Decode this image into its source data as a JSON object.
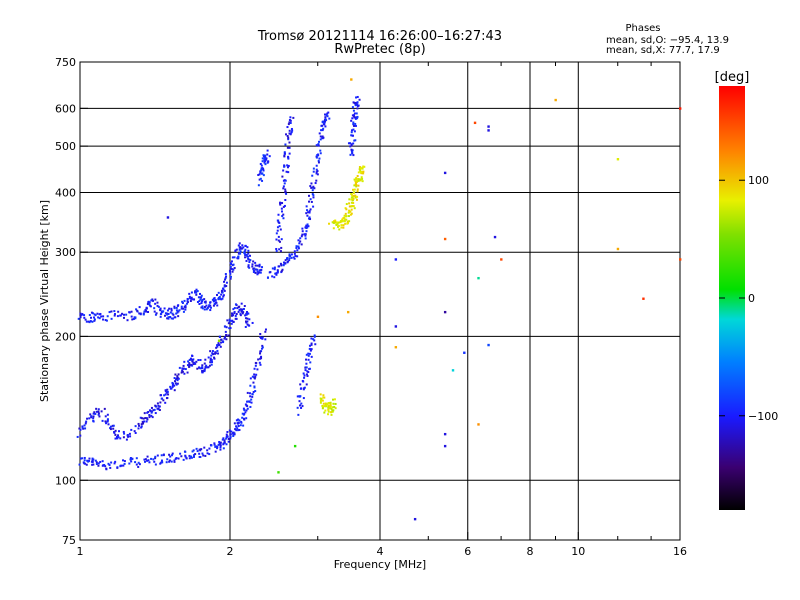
{
  "header": {
    "title_line1": "Tromsø 20121114 16:26:00–16:27:43",
    "title_line2": "RwPretec (8p)"
  },
  "info": {
    "line1": "Phases",
    "line2": "mean, sd,O: −95.4, 13.9",
    "line3": "mean, sd,X:  77.7, 17.9"
  },
  "colorbar": {
    "unit": "[deg]",
    "ticks": [
      {
        "value": 100,
        "label": "100"
      },
      {
        "value": 0,
        "label": "0"
      },
      {
        "value": -100,
        "label": "−100"
      }
    ],
    "range": [
      -180,
      180
    ]
  },
  "chart_data": {
    "type": "scatter",
    "title": "Tromsø 20121114 16:26:00–16:27:43",
    "subtitle": "RwPretec (8p)",
    "xlabel": "Frequency [MHz]",
    "ylabel": "Stationary phase Virtual Height [km]",
    "x_scale": "log",
    "y_scale": "log",
    "xlim": [
      1,
      16
    ],
    "ylim": [
      75,
      750
    ],
    "x_ticks": [
      {
        "value": 1,
        "label": "1"
      },
      {
        "value": 2,
        "label": "2"
      },
      {
        "value": 4,
        "label": "4"
      },
      {
        "value": 6,
        "label": "6"
      },
      {
        "value": 8,
        "label": "8"
      },
      {
        "value": 10,
        "label": "10"
      },
      {
        "value": 16,
        "label": "16"
      }
    ],
    "x_grid": [
      2,
      4,
      6,
      8,
      10
    ],
    "x_minor_ticks": [
      3,
      5,
      7,
      9,
      12,
      14
    ],
    "y_ticks": [
      {
        "value": 75,
        "label": "75"
      },
      {
        "value": 100,
        "label": "100"
      },
      {
        "value": 200,
        "label": "200"
      },
      {
        "value": 300,
        "label": "300"
      },
      {
        "value": 400,
        "label": "400"
      },
      {
        "value": 500,
        "label": "500"
      },
      {
        "value": 600,
        "label": "600"
      },
      {
        "value": 750,
        "label": "750"
      }
    ],
    "y_grid": [
      100,
      200,
      300,
      400,
      500,
      600
    ],
    "grid": true,
    "color_by": "phase [deg]",
    "traces": [
      {
        "description": "O-mode E layer trace",
        "phase": -100,
        "points": [
          [
            1.0,
            110
          ],
          [
            1.05,
            109
          ],
          [
            1.1,
            108
          ],
          [
            1.2,
            108
          ],
          [
            1.3,
            109
          ],
          [
            1.4,
            110
          ],
          [
            1.5,
            111
          ],
          [
            1.6,
            112
          ],
          [
            1.7,
            113
          ],
          [
            1.8,
            115
          ],
          [
            1.9,
            118
          ],
          [
            1.95,
            121
          ],
          [
            2.0,
            124
          ],
          [
            2.05,
            128
          ],
          [
            2.1,
            133
          ],
          [
            2.15,
            140
          ],
          [
            2.2,
            150
          ],
          [
            2.25,
            165
          ],
          [
            2.3,
            185
          ],
          [
            2.35,
            205
          ]
        ]
      },
      {
        "description": "O-mode lower scatter band",
        "phase": -105,
        "points": [
          [
            1.0,
            125
          ],
          [
            1.05,
            135
          ],
          [
            1.1,
            140
          ],
          [
            1.15,
            130
          ],
          [
            1.2,
            122
          ],
          [
            1.3,
            128
          ],
          [
            1.35,
            135
          ],
          [
            1.4,
            140
          ],
          [
            1.45,
            145
          ],
          [
            1.5,
            152
          ],
          [
            1.55,
            160
          ],
          [
            1.6,
            168
          ],
          [
            1.65,
            175
          ],
          [
            1.7,
            180
          ],
          [
            1.75,
            170
          ],
          [
            1.8,
            175
          ],
          [
            1.85,
            182
          ],
          [
            1.9,
            190
          ],
          [
            1.95,
            200
          ],
          [
            2.0,
            215
          ],
          [
            2.05,
            225
          ],
          [
            2.1,
            230
          ],
          [
            2.15,
            220
          ],
          [
            2.2,
            210
          ]
        ]
      },
      {
        "description": "Es / low F band",
        "phase": -100,
        "points": [
          [
            1.0,
            220
          ],
          [
            1.05,
            219
          ],
          [
            1.1,
            220
          ],
          [
            1.2,
            221
          ],
          [
            1.3,
            222
          ],
          [
            1.35,
            228
          ],
          [
            1.4,
            235
          ],
          [
            1.45,
            225
          ],
          [
            1.5,
            222
          ],
          [
            1.55,
            224
          ],
          [
            1.6,
            230
          ],
          [
            1.65,
            238
          ],
          [
            1.7,
            245
          ],
          [
            1.75,
            238
          ],
          [
            1.8,
            232
          ],
          [
            1.85,
            234
          ],
          [
            1.9,
            242
          ],
          [
            1.95,
            255
          ],
          [
            2.0,
            275
          ],
          [
            2.05,
            295
          ],
          [
            2.1,
            310
          ],
          [
            2.15,
            300
          ],
          [
            2.2,
            285
          ],
          [
            2.25,
            278
          ],
          [
            2.3,
            275
          ]
        ]
      },
      {
        "description": "O-mode F trace",
        "phase": -100,
        "points": [
          [
            2.4,
            270
          ],
          [
            2.5,
            275
          ],
          [
            2.6,
            285
          ],
          [
            2.7,
            300
          ],
          [
            2.8,
            320
          ],
          [
            2.85,
            345
          ],
          [
            2.9,
            380
          ],
          [
            2.95,
            420
          ],
          [
            3.0,
            470
          ],
          [
            3.05,
            520
          ],
          [
            3.1,
            560
          ],
          [
            3.15,
            590
          ]
        ]
      },
      {
        "description": "F trace vertical column 1",
        "phase": -105,
        "points": [
          [
            2.5,
            300
          ],
          [
            2.52,
            340
          ],
          [
            2.55,
            380
          ],
          [
            2.58,
            430
          ],
          [
            2.6,
            480
          ],
          [
            2.62,
            530
          ],
          [
            2.65,
            580
          ]
        ]
      },
      {
        "description": "F trace vertical column 2",
        "phase": -95,
        "points": [
          [
            2.3,
            420
          ],
          [
            2.32,
            450
          ],
          [
            2.35,
            470
          ],
          [
            2.38,
            480
          ]
        ]
      },
      {
        "description": "High F cusp",
        "phase": -100,
        "points": [
          [
            3.5,
            480
          ],
          [
            3.52,
            520
          ],
          [
            3.55,
            560
          ],
          [
            3.58,
            600
          ],
          [
            3.6,
            630
          ]
        ]
      },
      {
        "description": "X-mode F cluster",
        "phase": 85,
        "points": [
          [
            3.2,
            350
          ],
          [
            3.3,
            340
          ],
          [
            3.4,
            345
          ],
          [
            3.45,
            360
          ],
          [
            3.5,
            380
          ],
          [
            3.55,
            400
          ],
          [
            3.6,
            420
          ],
          [
            3.65,
            440
          ],
          [
            3.7,
            445
          ],
          [
            3.4,
            330
          ]
        ]
      },
      {
        "description": "X-mode E cluster",
        "phase": 80,
        "points": [
          [
            3.05,
            150
          ],
          [
            3.1,
            145
          ],
          [
            3.15,
            140
          ],
          [
            3.2,
            142
          ],
          [
            3.25,
            145
          ]
        ]
      },
      {
        "description": "Lower F column",
        "phase": -100,
        "points": [
          [
            2.75,
            140
          ],
          [
            2.8,
            155
          ],
          [
            2.85,
            170
          ],
          [
            2.9,
            185
          ],
          [
            2.95,
            200
          ]
        ]
      }
    ],
    "isolated_points": [
      {
        "x": 1.5,
        "y": 355,
        "phase": -110
      },
      {
        "x": 1.9,
        "y": 196,
        "phase": 60
      },
      {
        "x": 2.5,
        "y": 104,
        "phase": 30
      },
      {
        "x": 2.7,
        "y": 118,
        "phase": 20
      },
      {
        "x": 3.0,
        "y": 220,
        "phase": 120
      },
      {
        "x": 3.45,
        "y": 225,
        "phase": 110
      },
      {
        "x": 3.5,
        "y": 690,
        "phase": 110
      },
      {
        "x": 4.3,
        "y": 290,
        "phase": -100
      },
      {
        "x": 4.3,
        "y": 210,
        "phase": -110
      },
      {
        "x": 4.3,
        "y": 190,
        "phase": 110
      },
      {
        "x": 4.7,
        "y": 83,
        "phase": -110
      },
      {
        "x": 5.4,
        "y": 440,
        "phase": -110
      },
      {
        "x": 5.4,
        "y": 320,
        "phase": 140
      },
      {
        "x": 5.4,
        "y": 225,
        "phase": -130
      },
      {
        "x": 5.4,
        "y": 125,
        "phase": -110
      },
      {
        "x": 5.4,
        "y": 118,
        "phase": -110
      },
      {
        "x": 5.6,
        "y": 170,
        "phase": -20
      },
      {
        "x": 5.9,
        "y": 185,
        "phase": -90
      },
      {
        "x": 6.2,
        "y": 560,
        "phase": 150
      },
      {
        "x": 6.3,
        "y": 265,
        "phase": -10
      },
      {
        "x": 6.3,
        "y": 131,
        "phase": 120
      },
      {
        "x": 6.6,
        "y": 550,
        "phase": -110
      },
      {
        "x": 6.6,
        "y": 540,
        "phase": -110
      },
      {
        "x": 6.6,
        "y": 192,
        "phase": -80
      },
      {
        "x": 6.8,
        "y": 323,
        "phase": -110
      },
      {
        "x": 7.0,
        "y": 290,
        "phase": 150
      },
      {
        "x": 9.0,
        "y": 625,
        "phase": 110
      },
      {
        "x": 12.0,
        "y": 470,
        "phase": 80
      },
      {
        "x": 12.0,
        "y": 305,
        "phase": 110
      },
      {
        "x": 13.5,
        "y": 240,
        "phase": 160
      },
      {
        "x": 16.0,
        "y": 600,
        "phase": 170
      },
      {
        "x": 16.0,
        "y": 290,
        "phase": 150
      }
    ]
  }
}
